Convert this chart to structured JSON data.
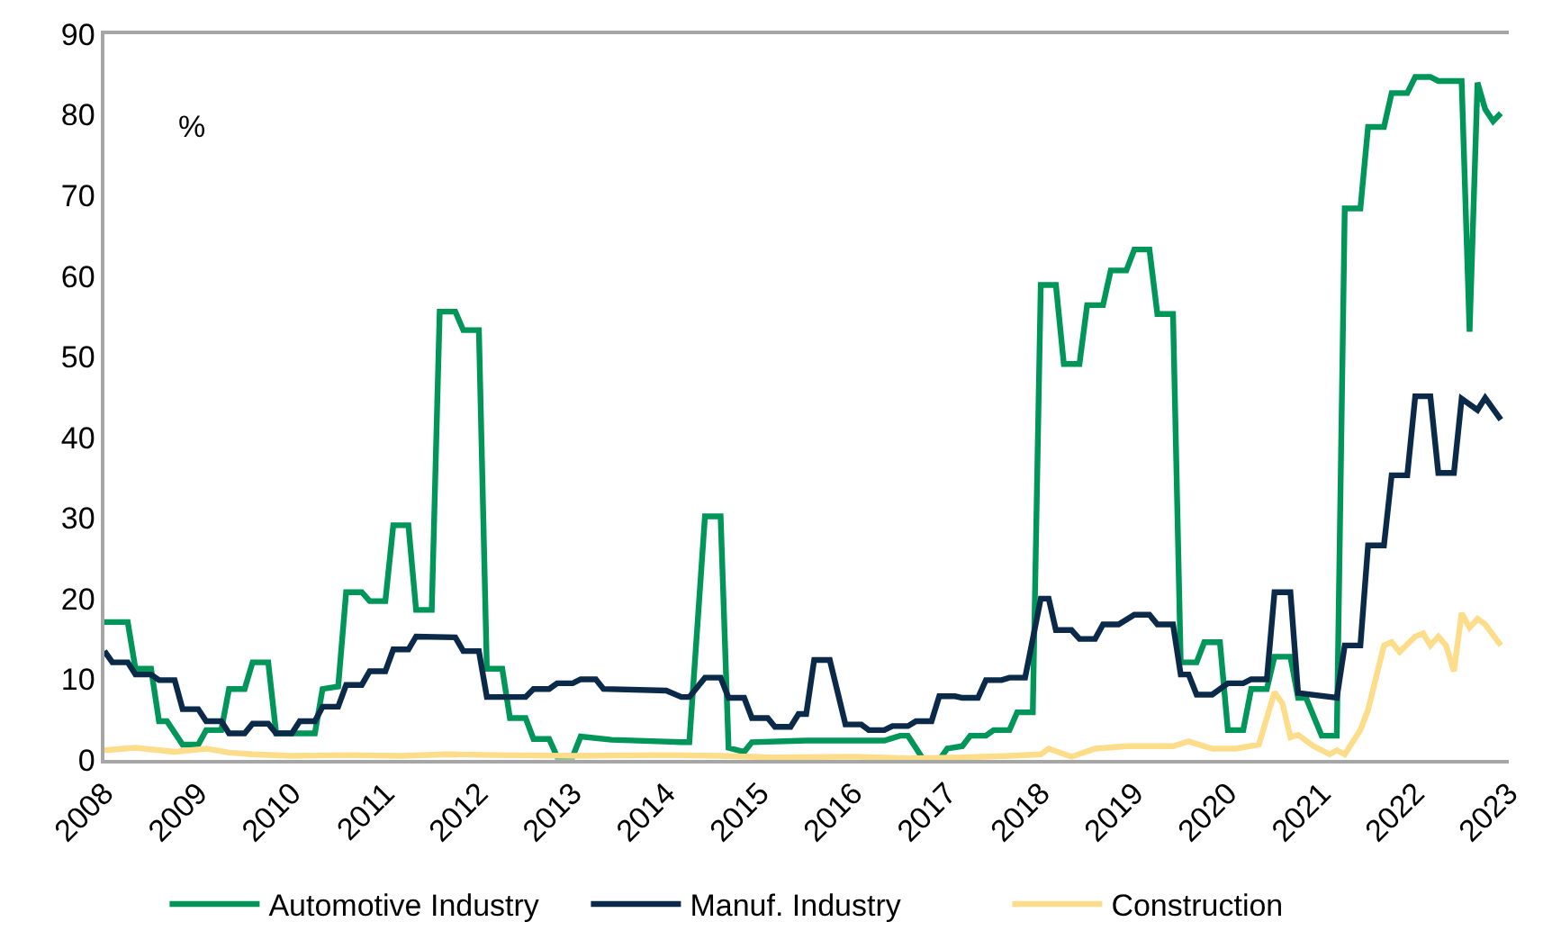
{
  "chart_data": {
    "type": "line",
    "annotations": [
      "%"
    ],
    "xlim": [
      "2008",
      "2023"
    ],
    "xticks": [
      "2008",
      "2009",
      "2010",
      "2011",
      "2012",
      "2013",
      "2014",
      "2015",
      "2016",
      "2017",
      "2018",
      "2019",
      "2020",
      "2021",
      "2022",
      "2023"
    ],
    "ylim": [
      0,
      90
    ],
    "yticks": [
      0,
      10,
      20,
      30,
      40,
      50,
      60,
      70,
      80,
      90
    ],
    "grid": false,
    "legend": "bottom",
    "marker": "none",
    "line_style": "solid",
    "series": [
      {
        "name": "Automotive Industry",
        "color": "#00965a",
        "x": [
          "2008-01",
          "2008-04",
          "2008-05",
          "2008-07",
          "2008-08",
          "2008-09",
          "2008-11",
          "2009-01",
          "2009-02",
          "2009-04",
          "2009-05",
          "2009-07",
          "2009-08",
          "2009-10",
          "2009-11",
          "2010-04",
          "2010-05",
          "2010-07",
          "2010-08",
          "2010-10",
          "2010-11",
          "2011-01",
          "2011-02",
          "2011-04",
          "2011-05",
          "2011-07",
          "2011-08",
          "2011-10",
          "2011-11",
          "2012-01",
          "2012-02",
          "2012-04",
          "2012-05",
          "2012-07",
          "2012-08",
          "2012-10",
          "2012-11",
          "2013-01",
          "2013-02",
          "2013-06",
          "2013-12",
          "2014-03",
          "2014-04",
          "2014-06",
          "2014-08",
          "2014-09",
          "2014-11",
          "2014-12",
          "2015-07",
          "2016-05",
          "2016-07",
          "2016-08",
          "2016-10",
          "2016-12",
          "2017-01",
          "2017-03",
          "2017-04",
          "2017-06",
          "2017-07",
          "2017-09",
          "2017-10",
          "2017-12",
          "2018-01",
          "2018-03",
          "2018-04",
          "2018-06",
          "2018-07",
          "2018-09",
          "2018-10",
          "2018-12",
          "2019-01",
          "2019-03",
          "2019-04",
          "2019-06",
          "2019-07",
          "2019-09",
          "2019-10",
          "2019-12",
          "2020-01",
          "2020-03",
          "2020-04",
          "2020-06",
          "2020-07",
          "2020-09",
          "2020-10",
          "2020-11",
          "2021-01",
          "2021-03",
          "2021-04",
          "2021-06",
          "2021-07",
          "2021-09",
          "2021-10",
          "2021-12",
          "2022-01",
          "2022-03",
          "2022-04",
          "2022-07",
          "2022-08",
          "2022-09",
          "2022-10",
          "2022-11",
          "2022-12"
        ],
        "values": [
          17.1,
          17.1,
          11.3,
          11.3,
          4.8,
          4.8,
          1.9,
          1.9,
          3.7,
          3.7,
          8.8,
          8.8,
          12.1,
          12.1,
          3.3,
          3.3,
          8.8,
          9.1,
          20.8,
          20.8,
          19.7,
          19.7,
          29.1,
          29.1,
          18.6,
          18.6,
          55.6,
          55.6,
          53.3,
          53.3,
          11.3,
          11.3,
          5.2,
          5.2,
          2.6,
          2.6,
          0.4,
          0.4,
          2.9,
          2.5,
          2.3,
          2.2,
          2.2,
          30.2,
          30.2,
          1.5,
          1.0,
          2.2,
          2.4,
          2.4,
          3.0,
          3.0,
          0,
          0,
          1.4,
          1.7,
          3.0,
          3.0,
          3.7,
          3.7,
          5.9,
          5.9,
          58.9,
          58.9,
          49.1,
          49.1,
          56.4,
          56.4,
          60.7,
          60.7,
          63.3,
          63.3,
          55.3,
          55.3,
          12.1,
          12.1,
          14.6,
          14.6,
          3.7,
          3.7,
          8.8,
          8.8,
          12.8,
          12.8,
          7.7,
          7.7,
          3.0,
          3.0,
          68.4,
          68.4,
          78.5,
          78.5,
          82.7,
          82.7,
          84.7,
          84.7,
          84.2,
          84.2,
          53.1,
          84.0,
          80.7,
          79.2,
          80.2
        ]
      },
      {
        "name": "Manuf. Industry",
        "color": "#0b2a4a",
        "x": [
          "2008-01",
          "2008-02",
          "2008-04",
          "2008-05",
          "2008-07",
          "2008-08",
          "2008-10",
          "2008-11",
          "2009-01",
          "2009-02",
          "2009-04",
          "2009-05",
          "2009-07",
          "2009-08",
          "2009-10",
          "2009-11",
          "2010-01",
          "2010-02",
          "2010-04",
          "2010-05",
          "2010-07",
          "2010-08",
          "2010-10",
          "2010-11",
          "2011-01",
          "2011-02",
          "2011-04",
          "2011-05",
          "2011-10",
          "2011-11",
          "2012-01",
          "2012-02",
          "2012-07",
          "2012-08",
          "2012-10",
          "2012-11",
          "2013-01",
          "2013-02",
          "2013-04",
          "2013-05",
          "2014-01",
          "2014-03",
          "2014-04",
          "2014-06",
          "2014-08",
          "2014-09",
          "2014-11",
          "2014-12",
          "2015-02",
          "2015-03",
          "2015-05",
          "2015-06",
          "2015-07",
          "2015-08",
          "2015-10",
          "2015-12",
          "2016-02",
          "2016-03",
          "2016-05",
          "2016-06",
          "2016-08",
          "2016-09",
          "2016-11",
          "2016-12",
          "2017-02",
          "2017-03",
          "2017-05",
          "2017-06",
          "2017-08",
          "2017-09",
          "2017-11",
          "2018-01",
          "2018-02",
          "2018-03",
          "2018-05",
          "2018-06",
          "2018-08",
          "2018-09",
          "2018-11",
          "2019-01",
          "2019-03",
          "2019-04",
          "2019-06",
          "2019-07",
          "2019-08",
          "2019-09",
          "2019-11",
          "2020-01",
          "2020-03",
          "2020-04",
          "2020-06",
          "2020-07",
          "2020-09",
          "2020-10",
          "2021-03",
          "2021-04",
          "2021-06",
          "2021-07",
          "2021-09",
          "2021-10",
          "2021-12",
          "2022-01",
          "2022-03",
          "2022-04",
          "2022-06",
          "2022-07",
          "2022-09",
          "2022-10",
          "2022-12"
        ],
        "values": [
          13.5,
          12.1,
          12.1,
          10.6,
          10.6,
          9.9,
          9.9,
          6.3,
          6.3,
          4.8,
          4.8,
          3.3,
          3.3,
          4.5,
          4.5,
          3.3,
          3.3,
          4.8,
          4.8,
          6.6,
          6.6,
          9.3,
          9.3,
          11.0,
          11.0,
          13.7,
          13.7,
          15.3,
          15.2,
          13.5,
          13.5,
          7.8,
          7.8,
          8.8,
          8.8,
          9.5,
          9.5,
          10.0,
          10.0,
          8.8,
          8.6,
          7.8,
          7.8,
          10.2,
          10.2,
          7.7,
          7.7,
          5.2,
          5.2,
          4.1,
          4.1,
          5.7,
          5.7,
          12.4,
          12.4,
          4.4,
          4.4,
          3.7,
          3.7,
          4.2,
          4.2,
          4.8,
          4.8,
          7.9,
          7.9,
          7.7,
          7.7,
          9.9,
          9.9,
          10.2,
          10.2,
          20.0,
          20.0,
          16.1,
          16.1,
          15.0,
          15.0,
          16.8,
          16.8,
          18.0,
          18.0,
          16.8,
          16.8,
          10.6,
          10.6,
          8.1,
          8.1,
          9.5,
          9.5,
          10.0,
          10.0,
          20.8,
          20.8,
          8.3,
          7.7,
          14.2,
          14.2,
          26.6,
          26.6,
          35.3,
          35.3,
          45.1,
          45.1,
          35.6,
          35.6,
          44.8,
          43.4,
          44.9,
          42.2
        ]
      },
      {
        "name": "Construction",
        "color": "#fddc8a",
        "x": [
          "2008-01",
          "2008-05",
          "2008-10",
          "2009-02",
          "2009-05",
          "2009-08",
          "2010-01",
          "2010-08",
          "2011-03",
          "2011-09",
          "2012-03",
          "2013-01",
          "2014-01",
          "2014-08",
          "2015-03",
          "2016-01",
          "2016-08",
          "2017-03",
          "2017-09",
          "2018-01",
          "2018-02",
          "2018-05",
          "2018-08",
          "2018-12",
          "2019-06",
          "2019-08",
          "2019-11",
          "2020-02",
          "2020-05",
          "2020-07",
          "2020-08",
          "2020-09",
          "2020-10",
          "2020-12",
          "2021-02",
          "2021-03",
          "2021-04",
          "2021-06",
          "2021-07",
          "2021-09",
          "2021-10",
          "2021-11",
          "2022-01",
          "2022-02",
          "2022-03",
          "2022-04",
          "2022-05",
          "2022-06",
          "2022-07",
          "2022-08",
          "2022-09",
          "2022-10",
          "2022-12"
        ],
        "values": [
          1.2,
          1.5,
          1.0,
          1.4,
          0.9,
          0.7,
          0.5,
          0.6,
          0.5,
          0.7,
          0.6,
          0.5,
          0.6,
          0.5,
          0.3,
          0.4,
          0.2,
          0.3,
          0.5,
          0.7,
          1.4,
          0.4,
          1.4,
          1.7,
          1.7,
          2.3,
          1.4,
          1.4,
          1.9,
          8.4,
          7.0,
          2.8,
          3.1,
          1.7,
          0.7,
          1.2,
          0.7,
          3.7,
          6.2,
          14.2,
          14.6,
          13.4,
          15.3,
          15.7,
          14.2,
          15.3,
          14.2,
          11.0,
          18.2,
          16.4,
          17.5,
          16.8,
          14.2
        ]
      }
    ]
  }
}
